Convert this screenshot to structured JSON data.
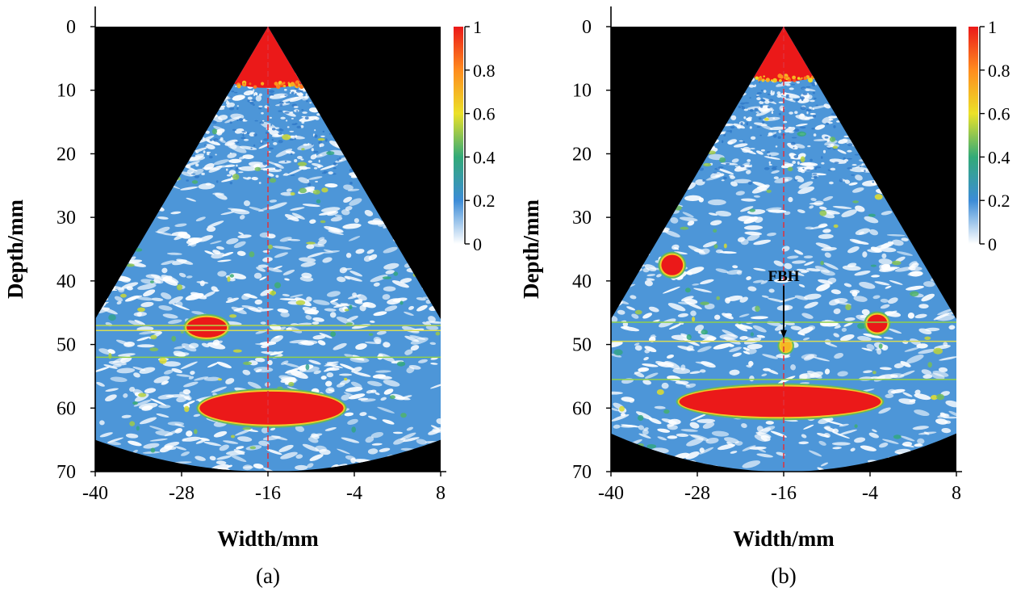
{
  "chart_data": [
    {
      "type": "heatmap",
      "caption": "(a)",
      "xlabel": "Width/mm",
      "ylabel": "Depth/mm",
      "xlim": [
        -40,
        8
      ],
      "ylim": [
        0,
        70
      ],
      "xticks": [
        -40,
        -28,
        -16,
        -4,
        8
      ],
      "yticks": [
        0,
        10,
        20,
        30,
        40,
        50,
        60,
        70
      ],
      "colorbar": {
        "min": 0,
        "max": 1,
        "ticks": [
          "1",
          "0.8",
          "0.6",
          "0.4",
          "0.2",
          "0"
        ]
      },
      "sector": {
        "apex_x": -16,
        "apex_depth": 0,
        "left_edge_depth": 46,
        "right_edge_depth": 46,
        "bottom_edge_depth": 65,
        "bottom_center_depth": 70
      },
      "center_line_x": -16,
      "horizontal_lines": [
        {
          "depth": 47,
          "color": "#b5d64a"
        },
        {
          "depth": 47.8,
          "color": "#d9dc55"
        },
        {
          "depth": 52,
          "color": "#8fcf4a"
        }
      ],
      "blobs": [
        {
          "x": -24.5,
          "depth": 47.3,
          "rx": 2.8,
          "ry": 1.6,
          "value": 1.0
        },
        {
          "x": -15.5,
          "depth": 60,
          "rx": 10,
          "ry": 2.6,
          "value": 1.0
        }
      ],
      "near_field": {
        "depth_start": 0,
        "depth_end": 9,
        "value": 1.0
      }
    },
    {
      "type": "heatmap",
      "caption": "(b)",
      "xlabel": "Width/mm",
      "ylabel": "Depth/mm",
      "xlim": [
        -40,
        8
      ],
      "ylim": [
        0,
        70
      ],
      "xticks": [
        -40,
        -28,
        -16,
        -4,
        8
      ],
      "yticks": [
        0,
        10,
        20,
        30,
        40,
        50,
        60,
        70
      ],
      "colorbar": {
        "min": 0,
        "max": 1,
        "ticks": [
          "1",
          "0.8",
          "0.6",
          "0.4",
          "0.2",
          "0"
        ]
      },
      "sector": {
        "apex_x": -16,
        "apex_depth": 0,
        "left_edge_depth": 46,
        "right_edge_depth": 46,
        "bottom_edge_depth": 64,
        "bottom_center_depth": 70
      },
      "center_line_x": -16,
      "horizontal_lines": [
        {
          "depth": 46.5,
          "color": "#8fcf4a"
        },
        {
          "depth": 49.5,
          "color": "#d9dc55"
        },
        {
          "depth": 55.5,
          "color": "#8fcf4a"
        }
      ],
      "blobs": [
        {
          "x": -31.5,
          "depth": 37.5,
          "rx": 1.5,
          "ry": 1.6,
          "value": 1.0
        },
        {
          "x": -3,
          "depth": 46.7,
          "rx": 1.4,
          "ry": 1.4,
          "value": 1.0
        },
        {
          "x": -15.7,
          "depth": 50.2,
          "rx": 0.7,
          "ry": 0.9,
          "value": 0.7
        },
        {
          "x": -16.5,
          "depth": 59,
          "rx": 14,
          "ry": 2.4,
          "value": 1.0
        }
      ],
      "near_field": {
        "depth_start": 0,
        "depth_end": 8,
        "value": 1.0
      },
      "annotations": [
        {
          "text": "FBH",
          "x": -16,
          "depth": 40.5,
          "arrow_to_depth": 49
        }
      ]
    }
  ]
}
